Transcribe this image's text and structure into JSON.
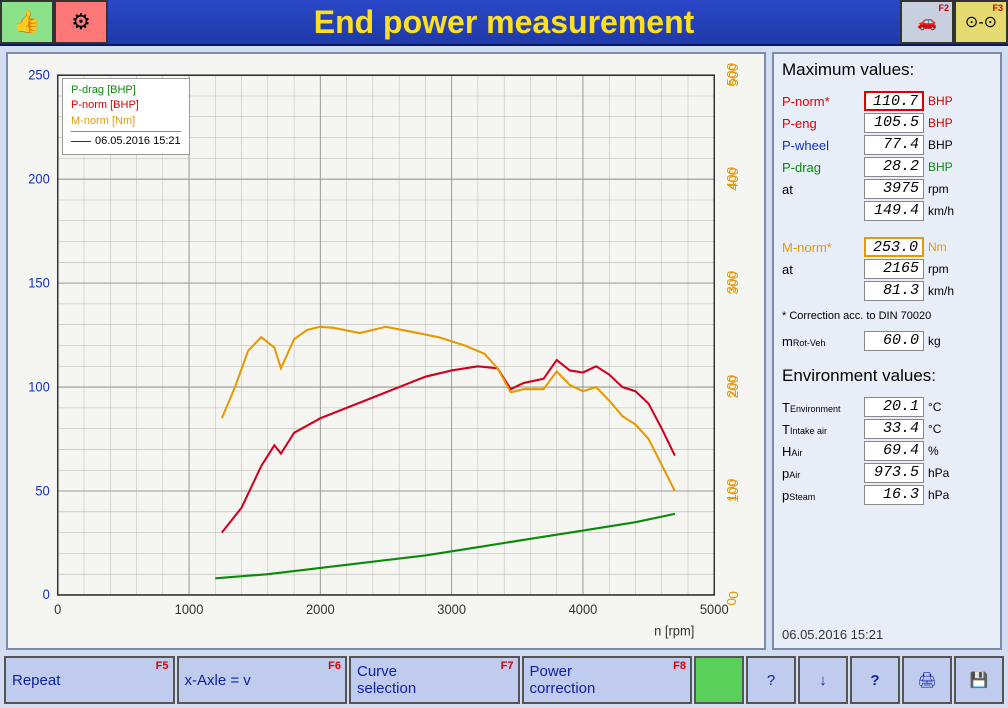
{
  "title": "End power measurement",
  "titlebar": {
    "f2": "F2",
    "f3": "F3"
  },
  "chart": {
    "xlabel": "n [rpm]",
    "xmin": 0,
    "xmax": 5000,
    "xtick_step": 1000,
    "y1max": 250,
    "y1tick_step": 50,
    "y2max": 500,
    "y2tick_step": 100,
    "bg_color": "#f5f5f2",
    "grid_color": "#b8b8b0",
    "axis_colors": {
      "left": "#1030c0",
      "right": "#e69a00"
    },
    "legend": {
      "pdrag": "P-drag [BHP]",
      "pnorm": "P-norm [BHP]",
      "mnorm": "M-norm [Nm]",
      "date": "06.05.2016 15:21"
    },
    "series": {
      "pdrag": {
        "color": "#0a8a0a",
        "points": [
          [
            1200,
            8
          ],
          [
            1600,
            10
          ],
          [
            2000,
            13
          ],
          [
            2400,
            16
          ],
          [
            2800,
            19
          ],
          [
            3200,
            23
          ],
          [
            3600,
            27
          ],
          [
            4000,
            31
          ],
          [
            4400,
            35
          ],
          [
            4700,
            39
          ]
        ]
      },
      "pnorm": {
        "color": "#d00020",
        "points": [
          [
            1250,
            30
          ],
          [
            1400,
            42
          ],
          [
            1550,
            62
          ],
          [
            1650,
            72
          ],
          [
            1700,
            68
          ],
          [
            1800,
            78
          ],
          [
            2000,
            85
          ],
          [
            2200,
            90
          ],
          [
            2400,
            95
          ],
          [
            2600,
            100
          ],
          [
            2800,
            105
          ],
          [
            3000,
            108
          ],
          [
            3200,
            110
          ],
          [
            3350,
            109
          ],
          [
            3450,
            99
          ],
          [
            3550,
            102
          ],
          [
            3700,
            104
          ],
          [
            3800,
            113
          ],
          [
            3900,
            108
          ],
          [
            4000,
            107
          ],
          [
            4100,
            110
          ],
          [
            4200,
            106
          ],
          [
            4300,
            100
          ],
          [
            4400,
            98
          ],
          [
            4500,
            92
          ],
          [
            4600,
            80
          ],
          [
            4700,
            67
          ]
        ]
      },
      "mnorm": {
        "color": "#e69a00",
        "points": [
          [
            1250,
            170
          ],
          [
            1350,
            200
          ],
          [
            1450,
            235
          ],
          [
            1550,
            248
          ],
          [
            1650,
            238
          ],
          [
            1700,
            218
          ],
          [
            1800,
            246
          ],
          [
            1900,
            255
          ],
          [
            2000,
            258
          ],
          [
            2100,
            257
          ],
          [
            2300,
            252
          ],
          [
            2500,
            258
          ],
          [
            2700,
            253
          ],
          [
            2900,
            248
          ],
          [
            3100,
            240
          ],
          [
            3250,
            232
          ],
          [
            3350,
            218
          ],
          [
            3450,
            195
          ],
          [
            3550,
            198
          ],
          [
            3700,
            198
          ],
          [
            3800,
            215
          ],
          [
            3900,
            202
          ],
          [
            4000,
            196
          ],
          [
            4100,
            200
          ],
          [
            4200,
            187
          ],
          [
            4300,
            172
          ],
          [
            4400,
            164
          ],
          [
            4500,
            150
          ],
          [
            4600,
            125
          ],
          [
            4700,
            100
          ]
        ]
      }
    }
  },
  "max_values": {
    "heading": "Maximum values:",
    "items": [
      {
        "label": "P-norm*",
        "value": "110.7",
        "unit": "BHP",
        "label_color": "c-red",
        "unit_color": "c-red",
        "highlight": "hl-red"
      },
      {
        "label": "P-eng",
        "value": "105.5",
        "unit": "BHP",
        "label_color": "c-red",
        "unit_color": "c-red"
      },
      {
        "label": "P-wheel",
        "value": "77.4",
        "unit": "BHP",
        "label_color": "c-blue"
      },
      {
        "label": "P-drag",
        "value": "28.2",
        "unit": "BHP",
        "label_color": "c-green",
        "unit_color": "c-green"
      },
      {
        "label": "at",
        "value": "3975",
        "unit": "rpm"
      },
      {
        "label": "",
        "value": "149.4",
        "unit": "km/h"
      }
    ],
    "items2": [
      {
        "label": "M-norm*",
        "value": "253.0",
        "unit": "Nm",
        "label_color": "c-orange",
        "unit_color": "c-orange",
        "highlight": "hl-orange"
      },
      {
        "label": "at",
        "value": "2165",
        "unit": "rpm"
      },
      {
        "label": "",
        "value": "81.3",
        "unit": "km/h"
      }
    ],
    "correction_note": "* Correction acc. to DIN 70020",
    "mrot": {
      "label": "m",
      "sub": "Rot-Veh",
      "value": "60.0",
      "unit": "kg"
    }
  },
  "env_values": {
    "heading": "Environment values:",
    "items": [
      {
        "label": "T",
        "sub": "Environment",
        "value": "20.1",
        "unit": "°C"
      },
      {
        "label": "T",
        "sub": "Intake air",
        "value": "33.4",
        "unit": "°C"
      },
      {
        "label": "H",
        "sub": "Air",
        "value": "69.4",
        "unit": "%"
      },
      {
        "label": "p",
        "sub": "Air",
        "value": "973.5",
        "unit": "hPa"
      },
      {
        "label": "p",
        "sub": "Steam",
        "value": "16.3",
        "unit": "hPa"
      }
    ]
  },
  "timestamp": "06.05.2016  15:21",
  "footer": {
    "repeat": {
      "label": "Repeat",
      "key": "F5"
    },
    "xaxle": {
      "label": "x-Axle = v",
      "key": "F6"
    },
    "curve": {
      "label": "Curve\nselection",
      "key": "F7"
    },
    "power": {
      "label": "Power\ncorrection",
      "key": "F8"
    }
  }
}
